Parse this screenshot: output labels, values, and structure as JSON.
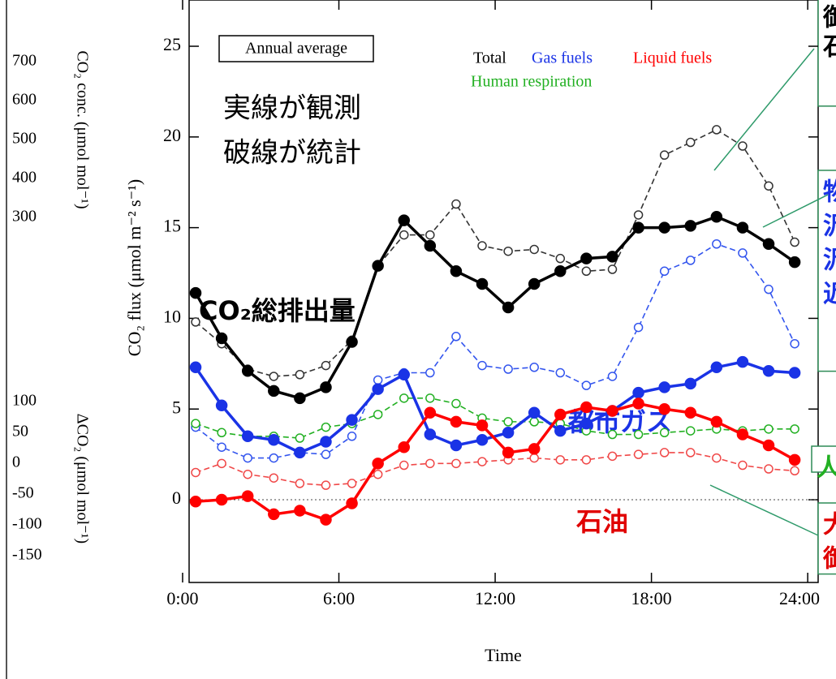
{
  "chart_data": {
    "type": "line",
    "box_label": "Annual average",
    "x_label": "Time",
    "y_label": "CO₂ flux (μmol m⁻² s⁻¹)",
    "x": [
      0.5,
      1.5,
      2.5,
      3.5,
      4.5,
      5.5,
      6.5,
      7.5,
      8.5,
      9.5,
      10.5,
      11.5,
      12.5,
      13.5,
      14.5,
      15.5,
      16.5,
      17.5,
      18.5,
      19.5,
      20.5,
      21.5,
      22.5,
      23.5
    ],
    "xlim": [
      0.25,
      24.4
    ],
    "xticks": [
      {
        "value": 0,
        "label": "0:00"
      },
      {
        "value": 6,
        "label": "6:00"
      },
      {
        "value": 12,
        "label": "12:00"
      },
      {
        "value": 18,
        "label": "18:00"
      },
      {
        "value": 24,
        "label": "24:00"
      }
    ],
    "ylim": [
      -4.56,
      27.55
    ],
    "yticks": [
      0,
      5,
      10,
      15,
      20,
      25
    ],
    "zero_line": true,
    "series": [
      {
        "name": "Total",
        "color": "#000000",
        "dashed": false,
        "marker": "filled",
        "values": [
          11.4,
          8.9,
          7.1,
          6.0,
          5.6,
          6.2,
          8.7,
          12.9,
          15.4,
          14.0,
          12.6,
          11.9,
          10.6,
          11.9,
          12.6,
          13.3,
          13.4,
          15.0,
          15.0,
          15.1,
          15.6,
          15.0,
          14.1,
          13.1
        ]
      },
      {
        "name": "Gas fuels",
        "color": "#1a33e6",
        "dashed": false,
        "marker": "filled",
        "values": [
          7.3,
          5.2,
          3.5,
          3.3,
          2.6,
          3.2,
          4.4,
          6.1,
          6.9,
          3.6,
          3.0,
          3.3,
          3.7,
          4.8,
          3.8,
          4.2,
          4.9,
          5.9,
          6.2,
          6.4,
          7.3,
          7.6,
          7.1,
          7.0
        ]
      },
      {
        "name": "Liquid fuels",
        "color": "#ff0000",
        "dashed": false,
        "marker": "filled",
        "values": [
          -0.1,
          0.0,
          0.2,
          -0.8,
          -0.6,
          -1.1,
          -0.2,
          2.0,
          2.9,
          4.8,
          4.3,
          4.1,
          2.6,
          2.8,
          4.7,
          5.1,
          4.9,
          5.3,
          5.0,
          4.8,
          4.3,
          3.6,
          3.0,
          2.2
        ]
      },
      {
        "name": "Total",
        "color": "#333333",
        "dashed": true,
        "marker": "open",
        "values": [
          9.8,
          8.6,
          7.2,
          6.8,
          6.9,
          7.4,
          8.8,
          12.9,
          14.6,
          14.6,
          16.3,
          14.0,
          13.7,
          13.8,
          13.3,
          12.6,
          12.7,
          15.7,
          19.0,
          19.7,
          20.4,
          19.5,
          17.3,
          14.2
        ]
      },
      {
        "name": "Gas fuels",
        "color": "#3355ee",
        "dashed": true,
        "marker": "open",
        "values": [
          4.0,
          2.9,
          2.3,
          2.3,
          2.6,
          2.5,
          3.5,
          6.6,
          7.0,
          7.0,
          9.0,
          7.4,
          7.2,
          7.3,
          7.0,
          6.3,
          6.8,
          9.5,
          12.6,
          13.2,
          14.1,
          13.6,
          11.6,
          8.6
        ]
      },
      {
        "name": "Liquid fuels",
        "color": "#f04848",
        "dashed": true,
        "marker": "open",
        "values": [
          1.5,
          2.0,
          1.4,
          1.2,
          0.9,
          0.8,
          0.9,
          1.4,
          1.9,
          2.0,
          2.0,
          2.1,
          2.2,
          2.3,
          2.2,
          2.2,
          2.4,
          2.5,
          2.6,
          2.6,
          2.3,
          1.9,
          1.7,
          1.6
        ]
      },
      {
        "name": "Human respiration",
        "color": "#22b022",
        "dashed": true,
        "marker": "open",
        "values": [
          4.2,
          3.7,
          3.5,
          3.5,
          3.4,
          4.0,
          4.2,
          4.7,
          5.6,
          5.6,
          5.3,
          4.5,
          4.3,
          4.3,
          4.2,
          3.8,
          3.6,
          3.6,
          3.7,
          3.8,
          3.9,
          3.8,
          3.9,
          3.9
        ]
      }
    ],
    "annotations": [
      "実線が観測",
      "破線が統計"
    ],
    "label_total": "CO₂総排出量",
    "label_gas": "都市ガス",
    "label_oil": "石油"
  },
  "left_panel": {
    "upper_label": "CO₂ conc. (μmol mol⁻¹)",
    "upper_ticks": [
      "700",
      "600",
      "500",
      "400",
      "300"
    ],
    "lower_label": "ΔCO₂ (μmol mol⁻¹)",
    "lower_ticks": [
      "100",
      "50",
      "0",
      "-50",
      "-100",
      "-150"
    ]
  },
  "side_boxes": [
    [
      "御",
      "石"
    ],
    [
      "物",
      "汎",
      "汎",
      "近"
    ],
    [
      "人"
    ],
    [
      "大",
      "御"
    ]
  ]
}
